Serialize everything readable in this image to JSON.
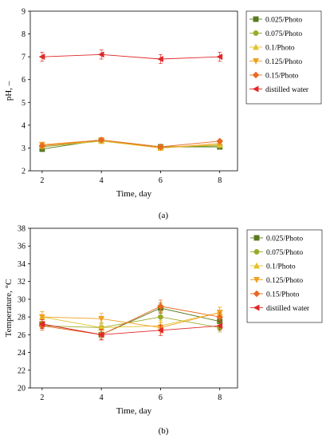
{
  "chart_data": [
    {
      "type": "line",
      "panel_label": "(a)",
      "xlabel": "Time, day",
      "ylabel": "pH, –",
      "x": [
        2,
        4,
        6,
        8
      ],
      "xlim": [
        1.6,
        8.6
      ],
      "ylim": [
        2,
        9
      ],
      "xticks": [
        2,
        4,
        6,
        8
      ],
      "yticks": [
        2,
        3,
        4,
        5,
        6,
        7,
        8,
        9
      ],
      "legend_position": "top-right, outside plot",
      "series": [
        {
          "name": "0.025/Photo",
          "color": "#5a7a1e",
          "marker": "square",
          "values": [
            2.95,
            3.35,
            3.05,
            3.05
          ],
          "error": [
            0.05,
            0.05,
            0.05,
            0.05
          ]
        },
        {
          "name": "0.075/Photo",
          "color": "#9aaa2a",
          "marker": "circle",
          "values": [
            3.05,
            3.3,
            3.05,
            3.1
          ],
          "error": [
            0.05,
            0.05,
            0.05,
            0.05
          ]
        },
        {
          "name": "0.1/Photo",
          "color": "#e5c22a",
          "marker": "triangle-up",
          "values": [
            3.1,
            3.3,
            3.0,
            3.15
          ],
          "error": [
            0.05,
            0.05,
            0.05,
            0.05
          ]
        },
        {
          "name": "0.125/Photo",
          "color": "#f0a020",
          "marker": "triangle-down",
          "values": [
            3.15,
            3.35,
            3.0,
            3.2
          ],
          "error": [
            0.05,
            0.05,
            0.05,
            0.05
          ]
        },
        {
          "name": "0.15/Photo",
          "color": "#e86a20",
          "marker": "diamond",
          "values": [
            3.1,
            3.35,
            3.05,
            3.3
          ],
          "error": [
            0.05,
            0.05,
            0.05,
            0.05
          ]
        },
        {
          "name": "distilled water",
          "color": "#e02828",
          "marker": "triangle-left",
          "values": [
            7.0,
            7.1,
            6.9,
            7.0
          ],
          "error": [
            0.2,
            0.2,
            0.2,
            0.2
          ]
        }
      ]
    },
    {
      "type": "line",
      "panel_label": "(b)",
      "xlabel": "Time, day",
      "ylabel": "Temperature, °C",
      "x": [
        2,
        4,
        6,
        8
      ],
      "xlim": [
        1.6,
        8.6
      ],
      "ylim": [
        20,
        38
      ],
      "xticks": [
        2,
        4,
        6,
        8
      ],
      "yticks": [
        20,
        22,
        24,
        26,
        28,
        30,
        32,
        34,
        36,
        38
      ],
      "legend_position": "top-right, inside plot",
      "series": [
        {
          "name": "0.025/Photo",
          "color": "#5a7a1e",
          "marker": "square",
          "values": [
            27.2,
            26.0,
            29.0,
            27.5
          ],
          "error": [
            0.5,
            0.5,
            0.6,
            0.5
          ]
        },
        {
          "name": "0.075/Photo",
          "color": "#9aaa2a",
          "marker": "circle",
          "values": [
            27.0,
            26.8,
            28.0,
            26.8
          ],
          "error": [
            0.5,
            0.5,
            0.6,
            0.5
          ]
        },
        {
          "name": "0.1/Photo",
          "color": "#e5c22a",
          "marker": "triangle-up",
          "values": [
            28.0,
            26.8,
            27.0,
            28.5
          ],
          "error": [
            0.6,
            0.6,
            0.6,
            0.6
          ]
        },
        {
          "name": "0.125/Photo",
          "color": "#f0a020",
          "marker": "triangle-down",
          "values": [
            28.0,
            27.8,
            26.8,
            28.5
          ],
          "error": [
            0.6,
            0.6,
            0.6,
            0.6
          ]
        },
        {
          "name": "0.15/Photo",
          "color": "#e86a20",
          "marker": "diamond",
          "values": [
            27.0,
            26.0,
            29.2,
            28.0
          ],
          "error": [
            0.5,
            0.5,
            0.7,
            0.5
          ]
        },
        {
          "name": "distilled water",
          "color": "#e02828",
          "marker": "triangle-left",
          "values": [
            27.2,
            26.0,
            26.5,
            27.0
          ],
          "error": [
            0.5,
            0.6,
            0.6,
            0.5
          ]
        }
      ]
    }
  ]
}
